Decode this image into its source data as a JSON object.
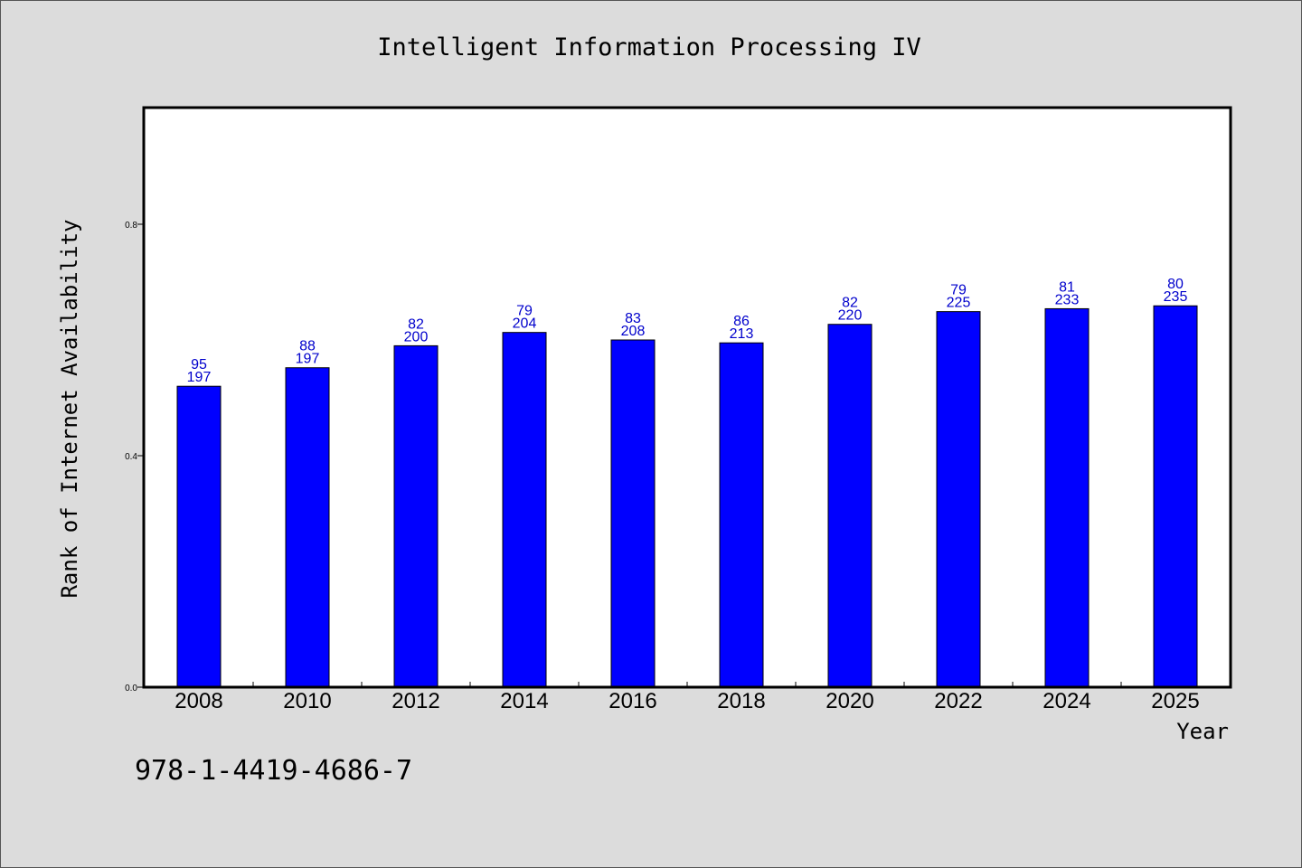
{
  "chart_data": {
    "type": "bar",
    "title": "Intelligent Information Processing IV",
    "xlabel": "Year",
    "ylabel": "Rank of Internet Availability",
    "categories": [
      "2008",
      "2010",
      "2012",
      "2014",
      "2016",
      "2018",
      "2020",
      "2022",
      "2024",
      "2025"
    ],
    "series": [
      {
        "values": [
          0.52,
          0.552,
          0.59,
          0.613,
          0.6,
          0.595,
          0.627,
          0.649,
          0.654,
          0.659
        ],
        "color": "#0000ff",
        "labels_top": [
          "95",
          "88",
          "82",
          "79",
          "83",
          "86",
          "82",
          "79",
          "81",
          "80"
        ],
        "labels_bottom": [
          "197",
          "197",
          "200",
          "204",
          "208",
          "213",
          "220",
          "225",
          "233",
          "235"
        ]
      }
    ],
    "ylim": [
      0,
      1.0
    ],
    "yticks": [
      "0.0",
      "0.4",
      "0.8"
    ],
    "grid": false,
    "legend": "none",
    "label_color": "#0000cc",
    "background": "#dcdcdc",
    "plot_background": "#ffffff"
  },
  "footer": {
    "isbn": "978-1-4419-4686-7"
  }
}
